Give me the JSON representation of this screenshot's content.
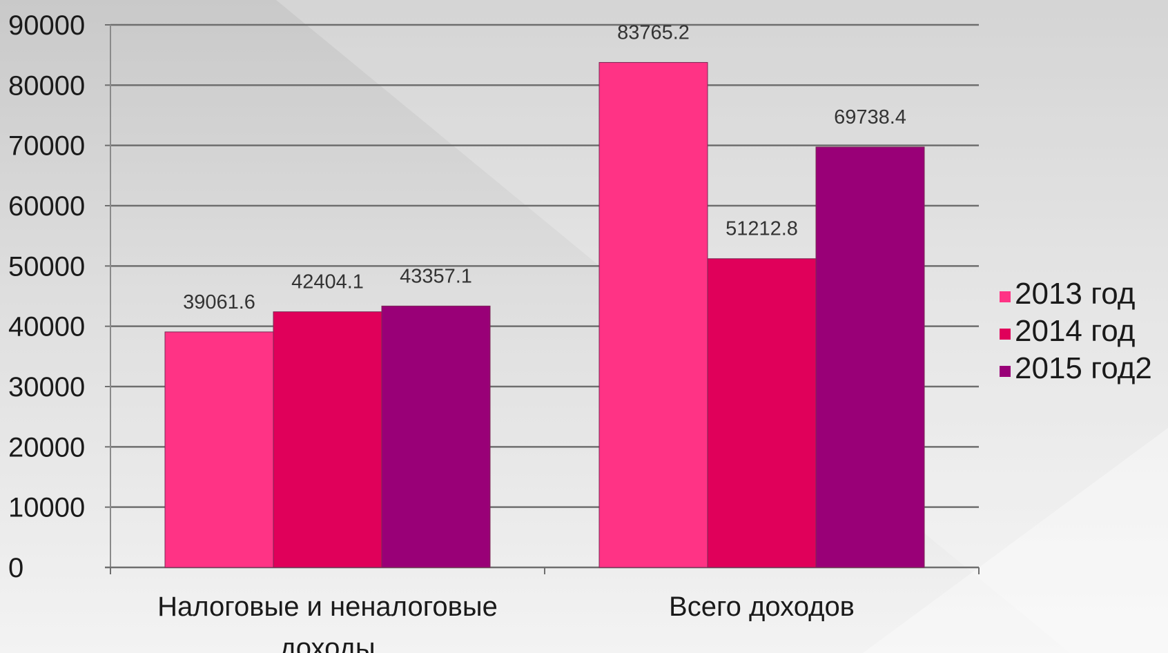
{
  "chart_data": {
    "type": "bar",
    "categories": [
      [
        "Налоговые и неналоговые",
        "доходы"
      ],
      [
        "Всего доходов"
      ]
    ],
    "series": [
      {
        "name": "2013 год",
        "values": [
          39061.6,
          83765.2
        ],
        "color": "#ff3385"
      },
      {
        "name": "2014 год",
        "values": [
          42404.1,
          51212.8
        ],
        "color": "#e0005a"
      },
      {
        "name": "2015 год2",
        "values": [
          43357.1,
          69738.4
        ],
        "color": "#990077"
      }
    ],
    "data_labels": [
      [
        "39061.6",
        "83765.2"
      ],
      [
        "42404.1",
        "51212.8"
      ],
      [
        "43357.1",
        "69738.4"
      ]
    ],
    "y_ticks": [
      "0",
      "10000",
      "20000",
      "30000",
      "40000",
      "50000",
      "60000",
      "70000",
      "80000",
      "90000"
    ],
    "ylim": [
      0,
      90000
    ],
    "grid": true,
    "legend_position": "right"
  }
}
